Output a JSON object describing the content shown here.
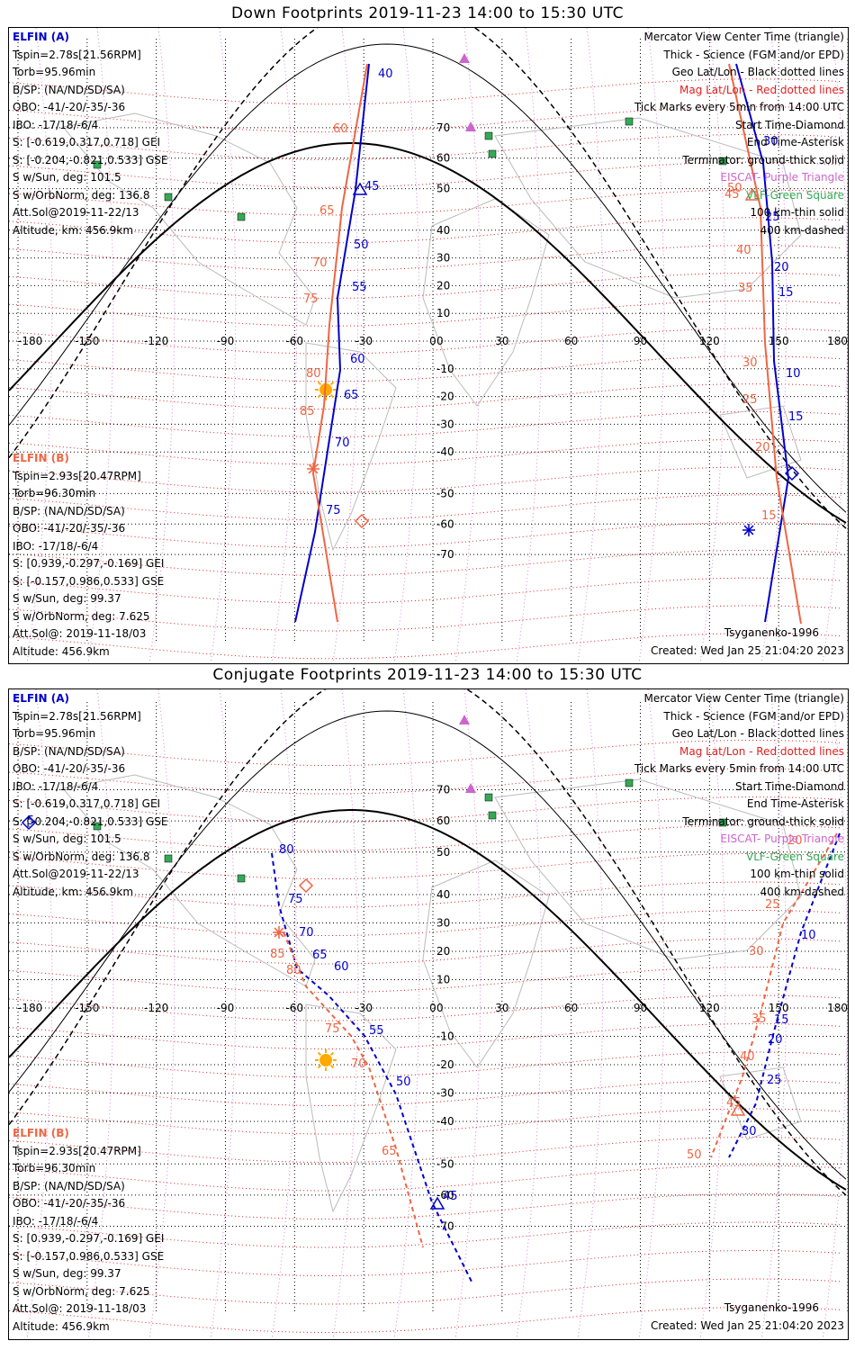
{
  "panels": [
    {
      "title": "Down Footprints 2019-11-23 14:00 to 15:30 UTC",
      "blue_track_labels": [
        "40",
        "45",
        "50",
        "55",
        "60",
        "65",
        "70",
        "75",
        "30",
        "25",
        "20",
        "15",
        "10",
        "15"
      ],
      "orange_track_labels": [
        "60",
        "65",
        "70",
        "75",
        "80",
        "85",
        "50",
        "45",
        "40",
        "35",
        "30",
        "25",
        "20",
        "15"
      ]
    },
    {
      "title": "Conjugate Footprints 2019-11-23 14:00 to 15:30 UTC",
      "blue_track_labels": [
        "80",
        "75",
        "70",
        "65",
        "60",
        "55",
        "50",
        "45",
        "5",
        "10",
        "15",
        "20",
        "25",
        "30"
      ],
      "orange_track_labels": [
        "85",
        "80",
        "75",
        "70",
        "65",
        "20",
        "25",
        "30",
        "35",
        "40",
        "45",
        "50"
      ]
    }
  ],
  "elfin_a": {
    "header": "ELFIN (A)",
    "lines": [
      "Tspin=2.78s[21.56RPM]",
      "Torb=95.96min",
      "B/SP: (NA/ND/SD/SA)",
      "OBO: -41/-20/-35/-36",
      "IBO: -17/18/-6/4",
      "S: [-0.619,0.317,0.718] GEI",
      "S: [-0.204,-0.821,0.533] GSE",
      "S w/Sun, deg: 101.5",
      "S w/OrbNorm, deg: 136.8",
      "Att.Sol@2019-11-22/13",
      "Altitude, km: 456.9km"
    ]
  },
  "elfin_b": {
    "header": "ELFIN (B)",
    "lines": [
      "Tspin=2.93s[20.47RPM]",
      "Torb=96.30min",
      "B/SP: (NA/ND/SD/SA)",
      "OBO: -41/-20/-35/-36",
      "IBO: -17/18/-6/4",
      "S: [0.939,-0.297,-0.169] GEI",
      "S: [-0.157,0.986,0.533] GSE",
      "S w/Sun, deg: 99.37",
      "S w/OrbNorm, deg: 7.625",
      "Att.Sol@: 2019-11-18/03",
      "Altitude: 456.9km"
    ]
  },
  "legend": {
    "center_time": "Mercator View Center Time (triangle)",
    "science": "Thick - Science (FGM and/or EPD)",
    "geo": "Geo Lat/Lon - Black dotted lines",
    "mag": "Mag Lat/Lon - Red dotted lines",
    "ticks": "Tick Marks every 5min from 14:00 UTC",
    "start": "Start Time-Diamond",
    "end": "End Time-Asterisk",
    "terminator": "Terminator: ground-thick solid",
    "eiscat": "EISCAT- Purple Triangle",
    "vlf": "VLF-Green Square",
    "km100": "100 km-thin solid",
    "km400": "400 km-dashed"
  },
  "model": "Tsyganenko-1996",
  "created": "Created: Wed Jan 25 21:04:20 2023",
  "lon_ticks": [
    "-180",
    "-150",
    "-120",
    "-90",
    "-60",
    "-30",
    "0",
    "30",
    "60",
    "90",
    "120",
    "150",
    "180"
  ],
  "lat_ticks": [
    "70",
    "60",
    "50",
    "40",
    "30",
    "20",
    "10",
    "0",
    "-10",
    "-20",
    "-30",
    "-40",
    "-50",
    "-60",
    "-70"
  ],
  "colors": {
    "elfin_a": "#0000cc",
    "elfin_b": "#ee6644",
    "mag_grid": "#e02020",
    "geo_grid": "#000000",
    "eiscat": "#cc66cc",
    "vlf": "#33aa55",
    "sun": "#ffaa00"
  }
}
